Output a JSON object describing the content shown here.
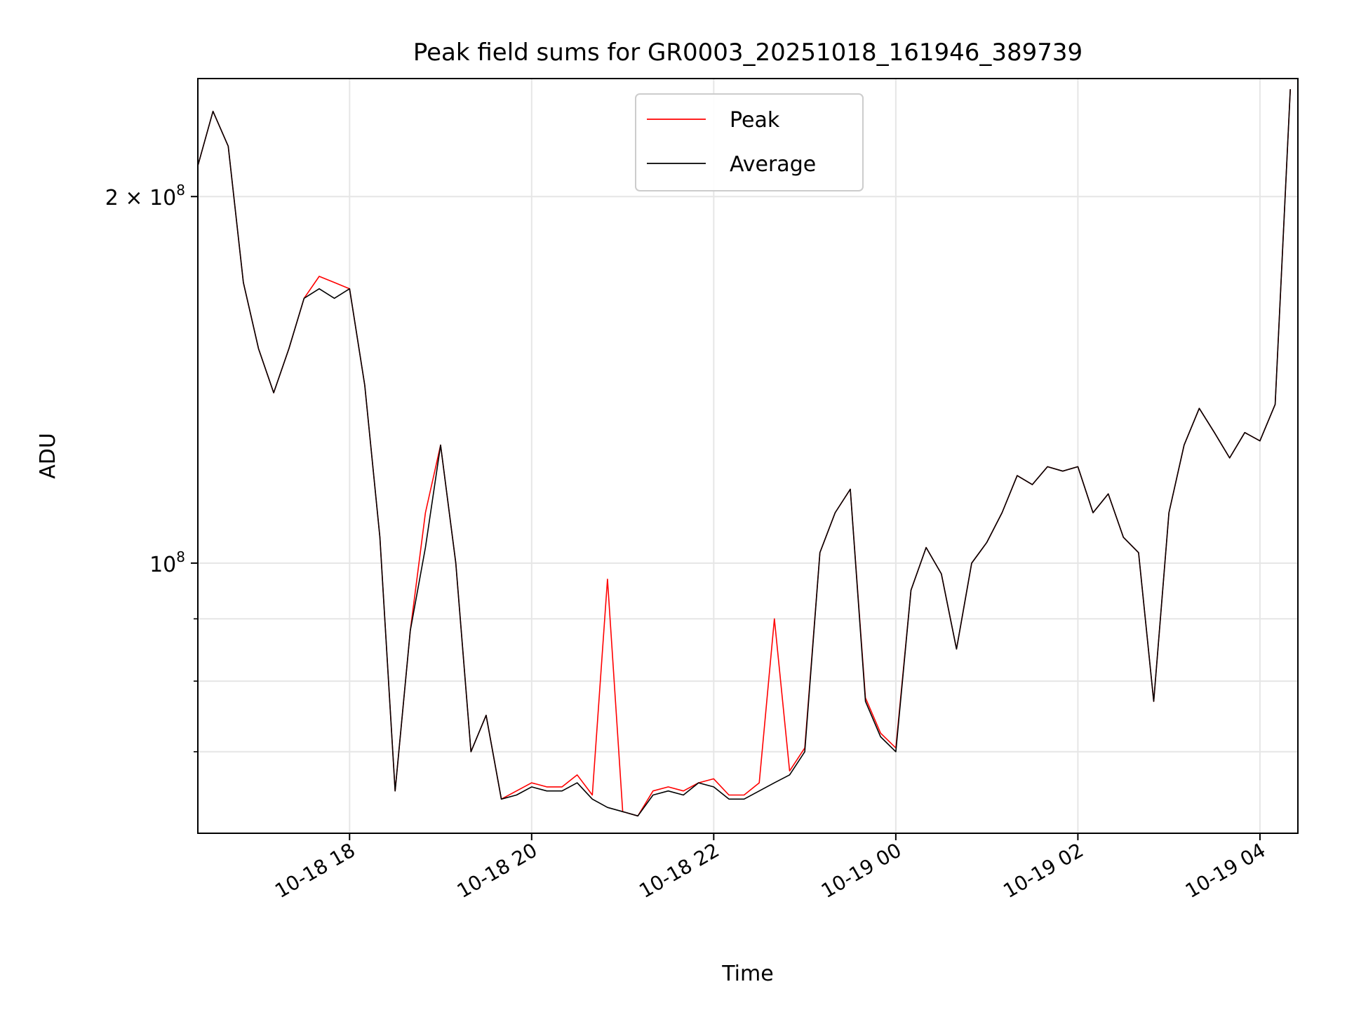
{
  "chart_data": {
    "type": "line",
    "title": "Peak field sums for GR0003_20251018_161946_389739",
    "xlabel": "Time",
    "ylabel": "ADU",
    "yscale": "log",
    "xlim": [
      "2025-10-18 16:20",
      "2025-10-19 04:25"
    ],
    "ylim": [
      60000000,
      250000000
    ],
    "x_ticks": [
      {
        "t": "2025-10-18 18:00",
        "label": "10-18 18"
      },
      {
        "t": "2025-10-18 20:00",
        "label": "10-18 20"
      },
      {
        "t": "2025-10-18 22:00",
        "label": "10-18 22"
      },
      {
        "t": "2025-10-19 00:00",
        "label": "10-19 00"
      },
      {
        "t": "2025-10-19 02:00",
        "label": "10-19 02"
      },
      {
        "t": "2025-10-19 04:00",
        "label": "10-19 04"
      }
    ],
    "y_major_ticks": [
      {
        "value": 100000000,
        "base": "10",
        "exp": "8",
        "mult": ""
      },
      {
        "value": 200000000,
        "base": "10",
        "exp": "8",
        "mult": "2 × "
      }
    ],
    "y_minor_ticks": [
      70000000,
      80000000,
      90000000
    ],
    "grid": true,
    "legend": {
      "position": "upper-center",
      "entries": [
        {
          "label": "Peak",
          "color": "#ff0000"
        },
        {
          "label": "Average",
          "color": "#000000"
        }
      ]
    },
    "x": [
      "2025-10-18 16:20",
      "2025-10-18 16:30",
      "2025-10-18 16:40",
      "2025-10-18 16:50",
      "2025-10-18 17:00",
      "2025-10-18 17:10",
      "2025-10-18 17:20",
      "2025-10-18 17:30",
      "2025-10-18 17:40",
      "2025-10-18 17:50",
      "2025-10-18 18:00",
      "2025-10-18 18:10",
      "2025-10-18 18:20",
      "2025-10-18 18:30",
      "2025-10-18 18:40",
      "2025-10-18 18:50",
      "2025-10-18 19:00",
      "2025-10-18 19:10",
      "2025-10-18 19:20",
      "2025-10-18 19:30",
      "2025-10-18 19:40",
      "2025-10-18 19:50",
      "2025-10-18 20:00",
      "2025-10-18 20:10",
      "2025-10-18 20:20",
      "2025-10-18 20:30",
      "2025-10-18 20:40",
      "2025-10-18 20:50",
      "2025-10-18 21:00",
      "2025-10-18 21:10",
      "2025-10-18 21:20",
      "2025-10-18 21:30",
      "2025-10-18 21:40",
      "2025-10-18 21:50",
      "2025-10-18 22:00",
      "2025-10-18 22:10",
      "2025-10-18 22:20",
      "2025-10-18 22:30",
      "2025-10-18 22:40",
      "2025-10-18 22:50",
      "2025-10-18 23:00",
      "2025-10-18 23:10",
      "2025-10-18 23:20",
      "2025-10-18 23:30",
      "2025-10-18 23:40",
      "2025-10-18 23:50",
      "2025-10-19 00:00",
      "2025-10-19 00:10",
      "2025-10-19 00:20",
      "2025-10-19 00:30",
      "2025-10-19 00:40",
      "2025-10-19 00:50",
      "2025-10-19 01:00",
      "2025-10-19 01:10",
      "2025-10-19 01:20",
      "2025-10-19 01:30",
      "2025-10-19 01:40",
      "2025-10-19 01:50",
      "2025-10-19 02:00",
      "2025-10-19 02:10",
      "2025-10-19 02:20",
      "2025-10-19 02:30",
      "2025-10-19 02:40",
      "2025-10-19 02:50",
      "2025-10-19 03:00",
      "2025-10-19 03:10",
      "2025-10-19 03:20",
      "2025-10-19 03:30",
      "2025-10-19 03:40",
      "2025-10-19 03:50",
      "2025-10-19 04:00",
      "2025-10-19 04:10",
      "2025-10-19 04:20"
    ],
    "series": [
      {
        "name": "Average",
        "color": "#000000",
        "values": [
          212000000,
          235000000,
          220000000,
          170000000,
          150000000,
          138000000,
          150000000,
          165000000,
          168000000,
          165000000,
          168000000,
          140000000,
          105000000,
          65000000,
          88000000,
          103000000,
          125000000,
          100000000,
          70000000,
          75000000,
          64000000,
          64500000,
          65500000,
          65000000,
          65000000,
          66000000,
          64000000,
          63000000,
          62500000,
          62000000,
          64500000,
          65000000,
          64500000,
          66000000,
          65500000,
          64000000,
          64000000,
          65000000,
          66000000,
          67000000,
          70000000,
          102000000,
          110000000,
          115000000,
          77000000,
          72000000,
          70000000,
          95000000,
          103000000,
          98000000,
          85000000,
          100000000,
          104000000,
          110000000,
          118000000,
          116000000,
          120000000,
          119000000,
          120000000,
          110000000,
          114000000,
          105000000,
          102000000,
          77000000,
          110000000,
          125000000,
          134000000,
          128000000,
          122000000,
          128000000,
          126000000,
          135000000,
          245000000
        ]
      },
      {
        "name": "Peak",
        "color": "#ff0000",
        "values": [
          212000000,
          235000000,
          220000000,
          170000000,
          150000000,
          138000000,
          150000000,
          165000000,
          172000000,
          170000000,
          168000000,
          140000000,
          105000000,
          65000000,
          88000000,
          110000000,
          125000000,
          100000000,
          70000000,
          75000000,
          64000000,
          65000000,
          66000000,
          65500000,
          65500000,
          67000000,
          64500000,
          97000000,
          62500000,
          62000000,
          65000000,
          65500000,
          65000000,
          66000000,
          66500000,
          64500000,
          64500000,
          66000000,
          90000000,
          67500000,
          70500000,
          102000000,
          110000000,
          115000000,
          77500000,
          72500000,
          70500000,
          95000000,
          103000000,
          98000000,
          85000000,
          100000000,
          104000000,
          110000000,
          118000000,
          116000000,
          120000000,
          119000000,
          120000000,
          110000000,
          114000000,
          105000000,
          102000000,
          77000000,
          110000000,
          125000000,
          134000000,
          128000000,
          122000000,
          128000000,
          126000000,
          135000000,
          245000000
        ]
      }
    ]
  }
}
